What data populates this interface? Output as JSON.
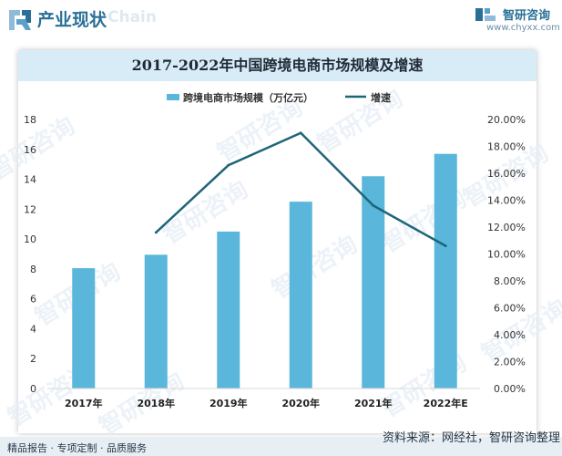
{
  "header": {
    "section_title": "产业现状",
    "watermark": "Chain",
    "brand_name": "智研咨询",
    "brand_site": "www.chyxx.com"
  },
  "chart_data": {
    "type": "bar+line",
    "title": "2017-2022年中国跨境电商市场规模及增速",
    "categories": [
      "2017年",
      "2018年",
      "2019年",
      "2020年",
      "2021年",
      "2022年E"
    ],
    "legend_position": "top-center",
    "grid": false,
    "series": [
      {
        "name": "跨境电商市场规模（万亿元）",
        "type": "bar",
        "axis": "left",
        "color": "#5ab6da",
        "values": [
          8.05,
          8.95,
          10.5,
          12.5,
          14.2,
          15.7
        ]
      },
      {
        "name": "增速",
        "type": "line",
        "axis": "right",
        "color": "#1e6579",
        "values": [
          null,
          11.6,
          16.6,
          19.0,
          13.6,
          10.6
        ]
      }
    ],
    "y_left": {
      "min": 0,
      "max": 18,
      "ticks": [
        "0",
        "2",
        "4",
        "6",
        "8",
        "10",
        "12",
        "14",
        "16",
        "18"
      ]
    },
    "y_right": {
      "min": 0,
      "max": 20,
      "ticks": [
        "0.00%",
        "2.00%",
        "4.00%",
        "6.00%",
        "8.00%",
        "10.00%",
        "12.00%",
        "14.00%",
        "16.00%",
        "18.00%",
        "20.00%"
      ]
    }
  },
  "footer": {
    "left": "精品报告 · 专项定制 · 品质服务",
    "right": "资料来源：网经社，智研咨询整理"
  },
  "watermark_text": "智研咨询"
}
